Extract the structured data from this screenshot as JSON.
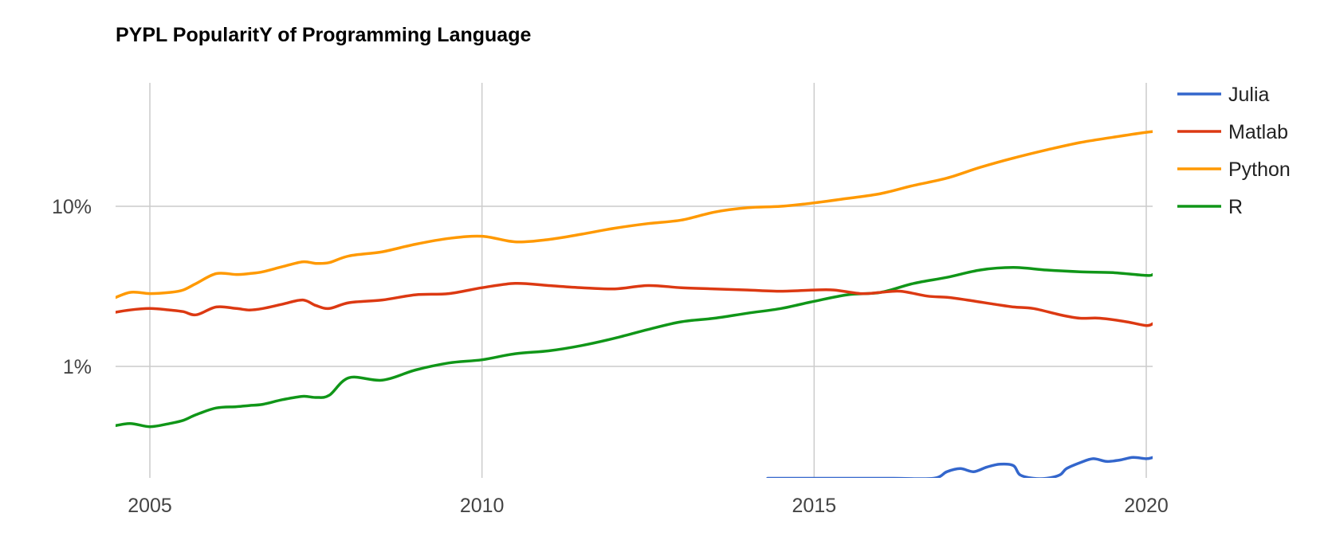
{
  "chart_data": {
    "type": "line",
    "title": "PYPL PopularitY of Programming Language",
    "xlabel": "",
    "ylabel": "",
    "y_scale": "log",
    "y_unit": "%",
    "xlim": [
      2004.4,
      2020.1
    ],
    "ylim": [
      0.2,
      33
    ],
    "x_ticks": [
      {
        "value": 2005,
        "label": "2005"
      },
      {
        "value": 2010,
        "label": "2010"
      },
      {
        "value": 2015,
        "label": "2015"
      },
      {
        "value": 2020,
        "label": "2020"
      }
    ],
    "y_ticks": [
      {
        "value": 10,
        "label": "10%"
      },
      {
        "value": 1,
        "label": "1%"
      }
    ],
    "grid": true,
    "legend_position": "right",
    "series": [
      {
        "name": "Julia",
        "color": "#3366cc",
        "points": [
          [
            2014.3,
            0.2
          ],
          [
            2015.3,
            0.2
          ],
          [
            2016.2,
            0.2
          ],
          [
            2016.8,
            0.2
          ],
          [
            2017.0,
            0.22
          ],
          [
            2017.2,
            0.23
          ],
          [
            2017.4,
            0.22
          ],
          [
            2017.6,
            0.235
          ],
          [
            2017.8,
            0.245
          ],
          [
            2018.0,
            0.24
          ],
          [
            2018.1,
            0.21
          ],
          [
            2018.3,
            0.2
          ],
          [
            2018.5,
            0.2
          ],
          [
            2018.7,
            0.21
          ],
          [
            2018.8,
            0.23
          ],
          [
            2019.0,
            0.25
          ],
          [
            2019.2,
            0.265
          ],
          [
            2019.4,
            0.255
          ],
          [
            2019.6,
            0.26
          ],
          [
            2019.8,
            0.27
          ],
          [
            2020.0,
            0.265
          ],
          [
            2020.1,
            0.27
          ]
        ]
      },
      {
        "name": "Matlab",
        "color": "#dc3912",
        "points": [
          [
            2004.4,
            2.15
          ],
          [
            2004.7,
            2.25
          ],
          [
            2005.0,
            2.3
          ],
          [
            2005.3,
            2.25
          ],
          [
            2005.5,
            2.2
          ],
          [
            2005.7,
            2.1
          ],
          [
            2006.0,
            2.35
          ],
          [
            2006.3,
            2.3
          ],
          [
            2006.5,
            2.25
          ],
          [
            2006.7,
            2.3
          ],
          [
            2007.0,
            2.45
          ],
          [
            2007.3,
            2.6
          ],
          [
            2007.5,
            2.4
          ],
          [
            2007.7,
            2.3
          ],
          [
            2008.0,
            2.5
          ],
          [
            2008.5,
            2.6
          ],
          [
            2009.0,
            2.8
          ],
          [
            2009.5,
            2.85
          ],
          [
            2010.0,
            3.1
          ],
          [
            2010.5,
            3.3
          ],
          [
            2011.0,
            3.2
          ],
          [
            2011.5,
            3.1
          ],
          [
            2012.0,
            3.05
          ],
          [
            2012.5,
            3.2
          ],
          [
            2013.0,
            3.1
          ],
          [
            2013.5,
            3.05
          ],
          [
            2014.0,
            3.0
          ],
          [
            2014.5,
            2.95
          ],
          [
            2015.0,
            3.0
          ],
          [
            2015.3,
            3.0
          ],
          [
            2015.7,
            2.85
          ],
          [
            2016.0,
            2.9
          ],
          [
            2016.3,
            2.95
          ],
          [
            2016.7,
            2.75
          ],
          [
            2017.0,
            2.7
          ],
          [
            2017.3,
            2.6
          ],
          [
            2017.7,
            2.45
          ],
          [
            2018.0,
            2.35
          ],
          [
            2018.3,
            2.3
          ],
          [
            2018.7,
            2.1
          ],
          [
            2019.0,
            2.0
          ],
          [
            2019.3,
            2.0
          ],
          [
            2019.7,
            1.9
          ],
          [
            2020.0,
            1.8
          ],
          [
            2020.1,
            1.85
          ]
        ]
      },
      {
        "name": "Python",
        "color": "#ff9900",
        "points": [
          [
            2004.4,
            2.6
          ],
          [
            2004.7,
            2.9
          ],
          [
            2005.0,
            2.85
          ],
          [
            2005.3,
            2.9
          ],
          [
            2005.5,
            3.0
          ],
          [
            2005.7,
            3.3
          ],
          [
            2006.0,
            3.8
          ],
          [
            2006.3,
            3.75
          ],
          [
            2006.5,
            3.8
          ],
          [
            2006.7,
            3.9
          ],
          [
            2007.0,
            4.2
          ],
          [
            2007.3,
            4.5
          ],
          [
            2007.5,
            4.4
          ],
          [
            2007.7,
            4.45
          ],
          [
            2008.0,
            4.9
          ],
          [
            2008.5,
            5.2
          ],
          [
            2009.0,
            5.8
          ],
          [
            2009.5,
            6.3
          ],
          [
            2010.0,
            6.5
          ],
          [
            2010.5,
            6.0
          ],
          [
            2011.0,
            6.2
          ],
          [
            2011.5,
            6.7
          ],
          [
            2012.0,
            7.3
          ],
          [
            2012.5,
            7.8
          ],
          [
            2013.0,
            8.2
          ],
          [
            2013.5,
            9.2
          ],
          [
            2014.0,
            9.8
          ],
          [
            2014.5,
            10.0
          ],
          [
            2015.0,
            10.5
          ],
          [
            2015.5,
            11.2
          ],
          [
            2016.0,
            12.0
          ],
          [
            2016.5,
            13.5
          ],
          [
            2017.0,
            15.0
          ],
          [
            2017.5,
            17.5
          ],
          [
            2018.0,
            20.0
          ],
          [
            2018.5,
            22.5
          ],
          [
            2019.0,
            25.0
          ],
          [
            2019.5,
            27.0
          ],
          [
            2020.0,
            29.0
          ],
          [
            2020.1,
            29.3
          ]
        ]
      },
      {
        "name": "R",
        "color": "#109618",
        "points": [
          [
            2004.4,
            0.42
          ],
          [
            2004.7,
            0.44
          ],
          [
            2005.0,
            0.42
          ],
          [
            2005.3,
            0.44
          ],
          [
            2005.5,
            0.46
          ],
          [
            2005.7,
            0.5
          ],
          [
            2006.0,
            0.55
          ],
          [
            2006.3,
            0.56
          ],
          [
            2006.5,
            0.57
          ],
          [
            2006.7,
            0.58
          ],
          [
            2007.0,
            0.62
          ],
          [
            2007.3,
            0.65
          ],
          [
            2007.5,
            0.64
          ],
          [
            2007.7,
            0.66
          ],
          [
            2008.0,
            0.85
          ],
          [
            2008.5,
            0.82
          ],
          [
            2009.0,
            0.95
          ],
          [
            2009.5,
            1.05
          ],
          [
            2010.0,
            1.1
          ],
          [
            2010.5,
            1.2
          ],
          [
            2011.0,
            1.25
          ],
          [
            2011.5,
            1.35
          ],
          [
            2012.0,
            1.5
          ],
          [
            2012.5,
            1.7
          ],
          [
            2013.0,
            1.9
          ],
          [
            2013.5,
            2.0
          ],
          [
            2014.0,
            2.15
          ],
          [
            2014.5,
            2.3
          ],
          [
            2015.0,
            2.55
          ],
          [
            2015.5,
            2.8
          ],
          [
            2016.0,
            2.9
          ],
          [
            2016.5,
            3.3
          ],
          [
            2017.0,
            3.6
          ],
          [
            2017.5,
            4.0
          ],
          [
            2018.0,
            4.15
          ],
          [
            2018.5,
            4.0
          ],
          [
            2019.0,
            3.9
          ],
          [
            2019.5,
            3.85
          ],
          [
            2020.0,
            3.7
          ],
          [
            2020.1,
            3.75
          ]
        ]
      }
    ]
  }
}
